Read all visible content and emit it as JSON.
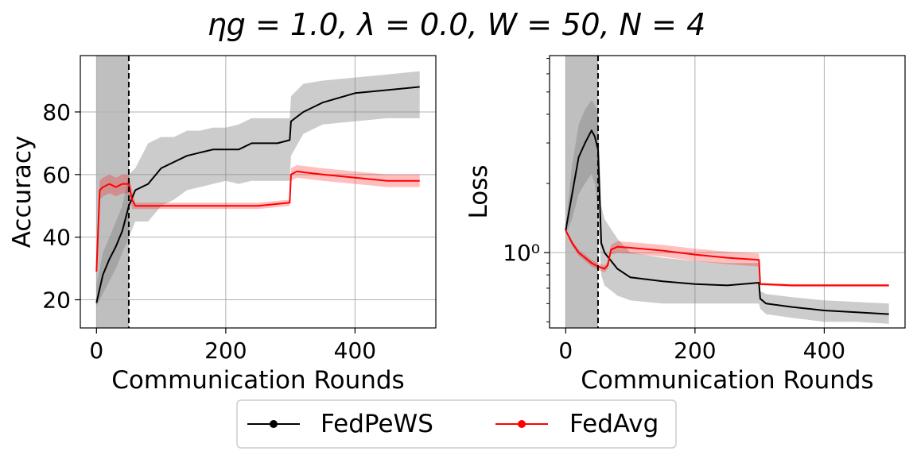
{
  "figure": {
    "title": "ηg = 1.0, λ = 0.0, W = 50, N = 4"
  },
  "legend": {
    "placement": "bottom-center",
    "entries": [
      {
        "label": "FedPeWS",
        "color": "#000000"
      },
      {
        "label": "FedAvg",
        "color": "#ff0000"
      }
    ]
  },
  "chart_data": [
    {
      "type": "line",
      "xlabel": "Communication Rounds",
      "ylabel": "Accuracy",
      "xlim": [
        -25,
        525
      ],
      "ylim": [
        11,
        98
      ],
      "xticks": [
        0,
        200,
        400
      ],
      "xtick_labels": [
        "0",
        "200",
        "400"
      ],
      "yticks": [
        20,
        40,
        60,
        80
      ],
      "ytick_labels": [
        "20",
        "40",
        "60",
        "80"
      ],
      "y_scale": "linear",
      "grid": true,
      "shaded_region": {
        "x": [
          0,
          50
        ],
        "color": "#bfbfbf"
      },
      "vline": 50,
      "series": [
        {
          "name": "FedPeWS",
          "color": "#000000",
          "x": [
            0,
            10,
            20,
            30,
            40,
            50,
            60,
            80,
            100,
            120,
            140,
            160,
            180,
            200,
            220,
            240,
            260,
            280,
            299,
            301,
            320,
            350,
            400,
            450,
            500
          ],
          "y": [
            19,
            28,
            33,
            37,
            42,
            50,
            55,
            57,
            62,
            64,
            66,
            67,
            68,
            68,
            68,
            70,
            70,
            70,
            71,
            77,
            80,
            83,
            86,
            87,
            88
          ],
          "band_low": [
            18,
            22,
            26,
            30,
            35,
            40,
            45,
            45,
            50,
            52,
            55,
            56,
            57,
            58,
            57,
            58,
            58,
            58,
            58,
            66,
            73,
            76,
            77,
            78,
            78
          ],
          "band_high": [
            25,
            35,
            40,
            45,
            50,
            60,
            62,
            70,
            72,
            72,
            74,
            74,
            75,
            75,
            76,
            78,
            78,
            78,
            78,
            85,
            89,
            90,
            91,
            92,
            93
          ]
        },
        {
          "name": "FedAvg",
          "color": "#ff0000",
          "x": [
            0,
            5,
            10,
            20,
            30,
            40,
            50,
            55,
            60,
            70,
            100,
            150,
            200,
            250,
            299,
            301,
            310,
            350,
            400,
            450,
            500
          ],
          "y": [
            29,
            55,
            56,
            57,
            56,
            57,
            57,
            52,
            50,
            50,
            50,
            50,
            50,
            50,
            51,
            60,
            61,
            60,
            59,
            58,
            58
          ],
          "band_low": [
            27,
            52,
            53,
            54,
            53,
            54,
            54,
            49,
            49,
            49,
            49,
            49,
            49,
            49,
            50,
            58,
            59,
            58,
            57,
            56,
            56
          ],
          "band_high": [
            31,
            58,
            59,
            60,
            59,
            60,
            60,
            55,
            51,
            51,
            51,
            51,
            51,
            51,
            52,
            62,
            63,
            62,
            61,
            60,
            60
          ]
        }
      ]
    },
    {
      "type": "line",
      "xlabel": "Communication Rounds",
      "ylabel": "Loss",
      "xlim": [
        -25,
        525
      ],
      "ylim": [
        0.47,
        7.2
      ],
      "xticks": [
        0,
        200,
        400
      ],
      "xtick_labels": [
        "0",
        "200",
        "400"
      ],
      "yticks": [
        1
      ],
      "ytick_labels": [
        "10⁰"
      ],
      "y_scale": "log",
      "grid": true,
      "shaded_region": {
        "x": [
          0,
          50
        ],
        "color": "#bfbfbf"
      },
      "vline": 50,
      "series": [
        {
          "name": "FedPeWS",
          "color": "#000000",
          "x": [
            0,
            10,
            20,
            30,
            40,
            45,
            50,
            55,
            60,
            80,
            100,
            150,
            200,
            250,
            299,
            301,
            310,
            350,
            400,
            450,
            500
          ],
          "y": [
            1.25,
            1.8,
            2.6,
            3.0,
            3.4,
            3.2,
            2.8,
            1.1,
            1.0,
            0.85,
            0.78,
            0.75,
            0.73,
            0.72,
            0.74,
            0.63,
            0.6,
            0.58,
            0.56,
            0.55,
            0.54
          ],
          "band_low": [
            1.2,
            1.4,
            1.8,
            2.0,
            2.2,
            2.0,
            1.5,
            0.8,
            0.72,
            0.65,
            0.62,
            0.6,
            0.6,
            0.6,
            0.6,
            0.57,
            0.54,
            0.52,
            0.5,
            0.5,
            0.49
          ],
          "band_high": [
            1.3,
            2.4,
            3.6,
            4.2,
            4.6,
            4.4,
            4.0,
            1.6,
            1.4,
            1.15,
            1.0,
            0.95,
            0.92,
            0.9,
            0.9,
            0.68,
            0.66,
            0.64,
            0.62,
            0.61,
            0.6
          ]
        },
        {
          "name": "FedAvg",
          "color": "#ff0000",
          "x": [
            0,
            10,
            20,
            30,
            40,
            50,
            60,
            65,
            70,
            80,
            100,
            150,
            200,
            250,
            299,
            301,
            350,
            400,
            450,
            500
          ],
          "y": [
            1.25,
            1.1,
            1.0,
            0.95,
            0.9,
            0.87,
            0.85,
            0.88,
            1.03,
            1.06,
            1.05,
            1.02,
            0.98,
            0.95,
            0.93,
            0.73,
            0.72,
            0.72,
            0.72,
            0.72
          ],
          "band_low": [
            1.23,
            1.07,
            0.97,
            0.92,
            0.87,
            0.84,
            0.82,
            0.85,
            0.98,
            1.0,
            0.99,
            0.96,
            0.92,
            0.89,
            0.87,
            0.72,
            0.71,
            0.71,
            0.71,
            0.71
          ],
          "band_high": [
            1.27,
            1.13,
            1.03,
            0.98,
            0.93,
            0.9,
            0.88,
            0.91,
            1.08,
            1.12,
            1.11,
            1.08,
            1.04,
            1.01,
            0.99,
            0.74,
            0.73,
            0.73,
            0.73,
            0.73
          ]
        }
      ]
    }
  ]
}
